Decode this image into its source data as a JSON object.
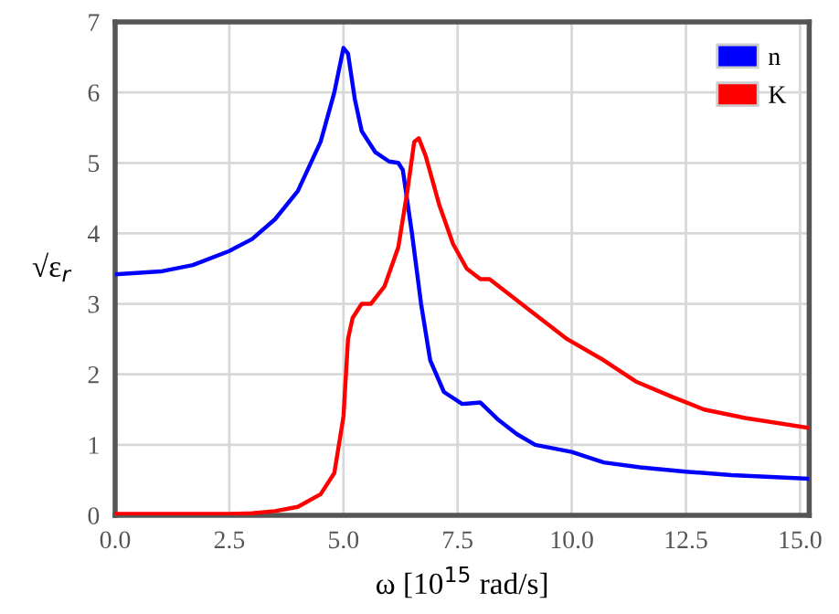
{
  "chart_data": {
    "type": "line",
    "xlabel": "ω [10$^{15}$ rad/s]",
    "ylabel": "√ε$_{r}$",
    "xlim": [
      0,
      15.2
    ],
    "ylim": [
      0,
      7
    ],
    "xticks": [
      {
        "value": 0,
        "label": "0.0"
      },
      {
        "value": 2.5,
        "label": "2.5"
      },
      {
        "value": 5,
        "label": "5.0"
      },
      {
        "value": 7.5,
        "label": "7.5"
      },
      {
        "value": 10,
        "label": "10.0"
      },
      {
        "value": 12.5,
        "label": "12.5"
      },
      {
        "value": 15,
        "label": "15.0"
      }
    ],
    "yticks": [
      0,
      1,
      2,
      3,
      4,
      5,
      6,
      7
    ],
    "grid": true,
    "legend": "top right",
    "marker": "none",
    "line_style": "solid",
    "series": [
      {
        "name": "n",
        "color": "#0000ff",
        "x": [
          0,
          1.0,
          1.7,
          2.5,
          3.0,
          3.5,
          4.0,
          4.5,
          4.8,
          5.0,
          5.1,
          5.25,
          5.4,
          5.7,
          6.0,
          6.2,
          6.3,
          6.5,
          6.7,
          6.9,
          7.2,
          7.6,
          8.0,
          8.4,
          8.8,
          9.2,
          10.0,
          10.7,
          11.5,
          12.5,
          13.5,
          15.2
        ],
        "values": [
          3.42,
          3.46,
          3.55,
          3.75,
          3.92,
          4.2,
          4.6,
          5.3,
          6.0,
          6.63,
          6.55,
          5.9,
          5.45,
          5.15,
          5.02,
          5.0,
          4.9,
          4.0,
          3.0,
          2.2,
          1.75,
          1.58,
          1.6,
          1.35,
          1.15,
          1.0,
          0.9,
          0.75,
          0.68,
          0.62,
          0.57,
          0.52
        ]
      },
      {
        "name": "K",
        "color": "#ff0000",
        "x": [
          0,
          2.5,
          3.0,
          3.5,
          4.0,
          4.5,
          4.8,
          5.0,
          5.1,
          5.2,
          5.4,
          5.6,
          5.9,
          6.2,
          6.4,
          6.55,
          6.65,
          6.8,
          7.1,
          7.4,
          7.7,
          8.0,
          8.2,
          8.6,
          9.2,
          9.9,
          10.7,
          11.4,
          12.2,
          12.9,
          13.8,
          15.2
        ],
        "values": [
          0.02,
          0.02,
          0.03,
          0.06,
          0.12,
          0.3,
          0.6,
          1.4,
          2.5,
          2.8,
          3.0,
          3.0,
          3.25,
          3.8,
          4.6,
          5.3,
          5.35,
          5.1,
          4.4,
          3.85,
          3.5,
          3.35,
          3.35,
          3.15,
          2.85,
          2.5,
          2.2,
          1.9,
          1.68,
          1.5,
          1.38,
          1.24
        ]
      }
    ]
  }
}
